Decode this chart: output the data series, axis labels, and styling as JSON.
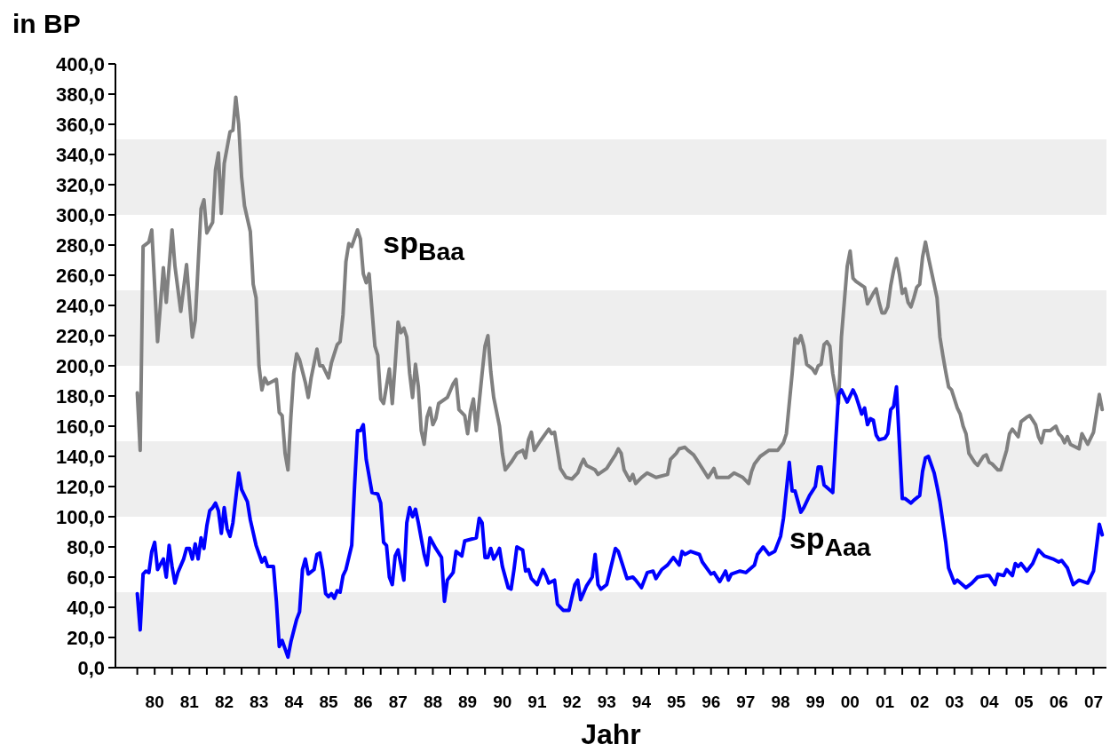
{
  "chart_data": {
    "type": "line",
    "ylabel": "in BP",
    "xlabel": "Jahr",
    "xlim": [
      "1979-05-15",
      "2007-11-15"
    ],
    "ylim": [
      0,
      400
    ],
    "xticks": [
      {
        "value": "1980-01",
        "label": null
      },
      {
        "value": "1980-07",
        "label": "80"
      },
      {
        "value": "1981-01",
        "label": null
      },
      {
        "value": "1981-07",
        "label": "81"
      },
      {
        "value": "1982-01",
        "label": null
      },
      {
        "value": "1982-07",
        "label": "82"
      },
      {
        "value": "1983-01",
        "label": null
      },
      {
        "value": "1983-07",
        "label": "83"
      },
      {
        "value": "1984-01",
        "label": null
      },
      {
        "value": "1984-07",
        "label": "84"
      },
      {
        "value": "1985-01",
        "label": null
      },
      {
        "value": "1985-07",
        "label": "85"
      },
      {
        "value": "1986-01",
        "label": null
      },
      {
        "value": "1986-07",
        "label": "86"
      },
      {
        "value": "1987-01",
        "label": null
      },
      {
        "value": "1987-07",
        "label": "87"
      },
      {
        "value": "1988-01",
        "label": null
      },
      {
        "value": "1988-07",
        "label": "88"
      },
      {
        "value": "1989-01",
        "label": null
      },
      {
        "value": "1989-07",
        "label": "89"
      },
      {
        "value": "1990-01",
        "label": null
      },
      {
        "value": "1990-07",
        "label": "90"
      },
      {
        "value": "1991-01",
        "label": null
      },
      {
        "value": "1991-07",
        "label": "91"
      },
      {
        "value": "1992-01",
        "label": null
      },
      {
        "value": "1992-07",
        "label": "92"
      },
      {
        "value": "1993-01",
        "label": null
      },
      {
        "value": "1993-07",
        "label": "93"
      },
      {
        "value": "1994-01",
        "label": null
      },
      {
        "value": "1994-07",
        "label": "94"
      },
      {
        "value": "1995-01",
        "label": null
      },
      {
        "value": "1995-07",
        "label": "95"
      },
      {
        "value": "1996-01",
        "label": null
      },
      {
        "value": "1996-07",
        "label": "96"
      },
      {
        "value": "1997-01",
        "label": null
      },
      {
        "value": "1997-07",
        "label": "97"
      },
      {
        "value": "1998-01",
        "label": null
      },
      {
        "value": "1998-07",
        "label": "98"
      },
      {
        "value": "1999-01",
        "label": null
      },
      {
        "value": "1999-07",
        "label": "99"
      },
      {
        "value": "2000-01",
        "label": null
      },
      {
        "value": "2000-07",
        "label": "00"
      },
      {
        "value": "2001-01",
        "label": null
      },
      {
        "value": "2001-07",
        "label": "01"
      },
      {
        "value": "2002-01",
        "label": null
      },
      {
        "value": "2002-07",
        "label": "02"
      },
      {
        "value": "2003-01",
        "label": null
      },
      {
        "value": "2003-07",
        "label": "03"
      },
      {
        "value": "2004-01",
        "label": null
      },
      {
        "value": "2004-07",
        "label": "04"
      },
      {
        "value": "2005-01",
        "label": null
      },
      {
        "value": "2005-07",
        "label": "05"
      },
      {
        "value": "2006-01",
        "label": null
      },
      {
        "value": "2006-07",
        "label": "06"
      },
      {
        "value": "2007-01",
        "label": null
      },
      {
        "value": "2007-07",
        "label": "07"
      }
    ],
    "yticks": [
      {
        "value": 0,
        "label": "0,0"
      },
      {
        "value": 20,
        "label": "20,0"
      },
      {
        "value": 40,
        "label": "40,0"
      },
      {
        "value": 60,
        "label": "60,0"
      },
      {
        "value": 80,
        "label": "80,0"
      },
      {
        "value": 100,
        "label": "100,0"
      },
      {
        "value": 120,
        "label": "120,0"
      },
      {
        "value": 140,
        "label": "140,0"
      },
      {
        "value": 160,
        "label": "160,0"
      },
      {
        "value": 180,
        "label": "180,0"
      },
      {
        "value": 200,
        "label": "200,0"
      },
      {
        "value": 220,
        "label": "220,0"
      },
      {
        "value": 240,
        "label": "240,0"
      },
      {
        "value": 260,
        "label": "260,0"
      },
      {
        "value": 280,
        "label": "280,0"
      },
      {
        "value": 300,
        "label": "300,0"
      },
      {
        "value": 320,
        "label": "320,0"
      },
      {
        "value": 340,
        "label": "340,0"
      },
      {
        "value": 360,
        "label": "360,0"
      },
      {
        "value": 380,
        "label": "380,0"
      },
      {
        "value": 400,
        "label": "400,0"
      }
    ],
    "grid": false,
    "legend": false,
    "marker": "none",
    "line_style": "solid",
    "bands": [
      {
        "axis": "y",
        "from": 0,
        "to": 50,
        "color": "#eeeeee"
      },
      {
        "axis": "y",
        "from": 100,
        "to": 150,
        "color": "#eeeeee"
      },
      {
        "axis": "y",
        "from": 200,
        "to": 250,
        "color": "#eeeeee"
      },
      {
        "axis": "y",
        "from": 300,
        "to": 350,
        "color": "#eeeeee"
      }
    ],
    "series": [
      {
        "name": "sp$_{Baa}$",
        "color": "#808080",
        "x": [
          "1980-01",
          "1980-02",
          "1980-03",
          "1980-05",
          "1980-06",
          "1980-08",
          "1980-10",
          "1980-11",
          "1981-01",
          "1981-02",
          "1981-04",
          "1981-06",
          "1981-08",
          "1981-09",
          "1981-11",
          "1981-12",
          "1982-01",
          "1982-03",
          "1982-04",
          "1982-05",
          "1982-06",
          "1982-07",
          "1982-09",
          "1982-10",
          "1982-11",
          "1982-12",
          "1983-01",
          "1983-02",
          "1983-04",
          "1983-05",
          "1983-06",
          "1983-07",
          "1983-08",
          "1983-09",
          "1983-10",
          "1984-01",
          "1984-02",
          "1984-03",
          "1984-04",
          "1984-05",
          "1984-06",
          "1984-07",
          "1984-08",
          "1984-09",
          "1984-11",
          "1984-12",
          "1985-01",
          "1985-03",
          "1985-04",
          "1985-05",
          "1985-07",
          "1985-08",
          "1985-10",
          "1985-11",
          "1985-12",
          "1986-01",
          "1986-02",
          "1986-03",
          "1986-05",
          "1986-06",
          "1986-07",
          "1986-08",
          "1986-09",
          "1986-11",
          "1986-12",
          "1987-01",
          "1987-02",
          "1987-04",
          "1987-05",
          "1987-06",
          "1987-07",
          "1987-08",
          "1987-09",
          "1987-10",
          "1987-11",
          "1987-12",
          "1988-01",
          "1988-02",
          "1988-03",
          "1988-04",
          "1988-05",
          "1988-06",
          "1988-07",
          "1988-08",
          "1988-09",
          "1988-12",
          "1989-02",
          "1989-03",
          "1989-04",
          "1989-06",
          "1989-07",
          "1989-08",
          "1989-09",
          "1989-10",
          "1989-12",
          "1990-01",
          "1990-02",
          "1990-03",
          "1990-04",
          "1990-06",
          "1990-07",
          "1990-08",
          "1990-10",
          "1990-12",
          "1991-02",
          "1991-03",
          "1991-04",
          "1991-05",
          "1991-06",
          "1991-08",
          "1991-11",
          "1991-12",
          "1992-01",
          "1992-02",
          "1992-03",
          "1992-05",
          "1992-07",
          "1992-09",
          "1992-10",
          "1992-11",
          "1992-12",
          "1993-02",
          "1993-03",
          "1993-04",
          "1993-07",
          "1993-09",
          "1993-10",
          "1993-11",
          "1993-12",
          "1994-01",
          "1994-03",
          "1994-04",
          "1994-05",
          "1994-07",
          "1994-09",
          "1994-12",
          "1995-04",
          "1995-05",
          "1995-07",
          "1995-08",
          "1995-10",
          "1995-11",
          "1996-01",
          "1996-02",
          "1996-03",
          "1996-06",
          "1996-08",
          "1996-09",
          "1997-01",
          "1997-03",
          "1997-06",
          "1997-08",
          "1997-09",
          "1997-10",
          "1997-12",
          "1998-03",
          "1998-06",
          "1998-08",
          "1998-09",
          "1998-10",
          "1998-11",
          "1998-12",
          "1999-01",
          "1999-02",
          "1999-03",
          "1999-04",
          "1999-06",
          "1999-07",
          "1999-08",
          "1999-09",
          "1999-10",
          "1999-11",
          "1999-12",
          "2000-01",
          "2000-02",
          "2000-03",
          "2000-04",
          "2000-06",
          "2000-07",
          "2000-08",
          "2000-09",
          "2000-12",
          "2001-01",
          "2001-03",
          "2001-04",
          "2001-05",
          "2001-06",
          "2001-07",
          "2001-08",
          "2001-09",
          "2001-10",
          "2001-11",
          "2001-12",
          "2002-01",
          "2002-02",
          "2002-03",
          "2002-04",
          "2002-05",
          "2002-06",
          "2002-07",
          "2002-08",
          "2002-09",
          "2002-10",
          "2003-01",
          "2003-02",
          "2003-03",
          "2003-04",
          "2003-05",
          "2003-06",
          "2003-08",
          "2003-09",
          "2003-10",
          "2003-11",
          "2003-12",
          "2004-02",
          "2004-03",
          "2004-05",
          "2004-06",
          "2004-07",
          "2004-08",
          "2004-10",
          "2004-11",
          "2005-01",
          "2005-02",
          "2005-03",
          "2005-05",
          "2005-06",
          "2005-08",
          "2005-09",
          "2005-10",
          "2005-11",
          "2005-12",
          "2006-01",
          "2006-02",
          "2006-04",
          "2006-06",
          "2006-07",
          "2006-08",
          "2006-09",
          "2006-10",
          "2006-11",
          "2007-02",
          "2007-03",
          "2007-05",
          "2007-07",
          "2007-09",
          "2007-10"
        ],
        "values": [
          182,
          144,
          279,
          282,
          290,
          216,
          265,
          242,
          290,
          266,
          236,
          267,
          219,
          230,
          304,
          310,
          288,
          295,
          330,
          341,
          301,
          334,
          355,
          356,
          378,
          360,
          325,
          306,
          289,
          254,
          245,
          200,
          184,
          192,
          188,
          191,
          169,
          167,
          142,
          131,
          166,
          195,
          208,
          204,
          189,
          179,
          192,
          211,
          200,
          200,
          192,
          202,
          214,
          216,
          234,
          269,
          281,
          279,
          290,
          284,
          261,
          255,
          261,
          213,
          207,
          178,
          175,
          198,
          175,
          201,
          229,
          222,
          225,
          219,
          195,
          179,
          201,
          186,
          157,
          148,
          166,
          172,
          161,
          165,
          175,
          179,
          188,
          191,
          171,
          167,
          155,
          170,
          178,
          157,
          195,
          213,
          220,
          196,
          179,
          160,
          142,
          131,
          136,
          142,
          144,
          139,
          151,
          156,
          144,
          150,
          158,
          155,
          156,
          144,
          132,
          126,
          125,
          129,
          134,
          138,
          134,
          132,
          131,
          128,
          132,
          138,
          141,
          145,
          142,
          131,
          124,
          128,
          122,
          126,
          129,
          126,
          128,
          138,
          142,
          145,
          146,
          144,
          141,
          138,
          135,
          126,
          132,
          126,
          126,
          129,
          126,
          122,
          130,
          135,
          140,
          144,
          144,
          149,
          155,
          175,
          195,
          218,
          215,
          220,
          213,
          201,
          198,
          195,
          200,
          201,
          214,
          216,
          213,
          195,
          184,
          175,
          219,
          266,
          276,
          258,
          256,
          252,
          241,
          248,
          251,
          242,
          235,
          235,
          239,
          253,
          263,
          271,
          261,
          248,
          251,
          242,
          239,
          245,
          252,
          254,
          272,
          282,
          272,
          245,
          219,
          207,
          196,
          186,
          184,
          172,
          168,
          160,
          155,
          142,
          136,
          134,
          140,
          141,
          136,
          135,
          131,
          131,
          144,
          155,
          158,
          153,
          163,
          166,
          167,
          164,
          161,
          153,
          149,
          157,
          157,
          160,
          155,
          153,
          149,
          153,
          148,
          145,
          155,
          148,
          156,
          181,
          171
        ]
      },
      {
        "name": "sp$_{Aaa}$",
        "color": "#0000ff",
        "x": [
          "1980-01",
          "1980-02",
          "1980-03",
          "1980-04",
          "1980-05",
          "1980-06",
          "1980-07",
          "1980-08",
          "1980-10",
          "1980-11",
          "1980-12",
          "1981-01",
          "1981-02",
          "1981-03",
          "1981-05",
          "1981-06",
          "1981-07",
          "1981-08",
          "1981-09",
          "1981-10",
          "1981-11",
          "1981-12",
          "1982-01",
          "1982-02",
          "1982-03",
          "1982-04",
          "1982-05",
          "1982-06",
          "1982-07",
          "1982-08",
          "1982-09",
          "1982-10",
          "1982-12",
          "1983-01",
          "1983-03",
          "1983-04",
          "1983-06",
          "1983-08",
          "1983-09",
          "1983-10",
          "1983-12",
          "1984-01",
          "1984-02",
          "1984-03",
          "1984-05",
          "1984-06",
          "1984-08",
          "1984-09",
          "1984-10",
          "1984-11",
          "1984-12",
          "1985-02",
          "1985-03",
          "1985-04",
          "1985-05",
          "1985-06",
          "1985-07",
          "1985-08",
          "1985-09",
          "1985-10",
          "1985-11",
          "1985-12",
          "1986-01",
          "1986-03",
          "1986-04",
          "1986-05",
          "1986-06",
          "1986-07",
          "1986-08",
          "1986-10",
          "1986-12",
          "1987-01",
          "1987-02",
          "1987-03",
          "1987-04",
          "1987-05",
          "1987-06",
          "1987-07",
          "1987-09",
          "1987-10",
          "1987-11",
          "1987-12",
          "1988-01",
          "1988-02",
          "1988-04",
          "1988-05",
          "1988-06",
          "1988-08",
          "1988-10",
          "1988-11",
          "1988-12",
          "1989-02",
          "1989-03",
          "1989-05",
          "1989-06",
          "1989-08",
          "1989-10",
          "1989-11",
          "1989-12",
          "1990-01",
          "1990-02",
          "1990-03",
          "1990-04",
          "1990-05",
          "1990-06",
          "1990-07",
          "1990-09",
          "1990-10",
          "1990-11",
          "1990-12",
          "1991-02",
          "1991-03",
          "1991-04",
          "1991-05",
          "1991-07",
          "1991-09",
          "1991-10",
          "1991-11",
          "1992-01",
          "1992-02",
          "1992-04",
          "1992-05",
          "1992-06",
          "1992-08",
          "1992-09",
          "1992-10",
          "1992-12",
          "1993-02",
          "1993-03",
          "1993-04",
          "1993-05",
          "1993-07",
          "1993-10",
          "1993-11",
          "1994-02",
          "1994-04",
          "1994-05",
          "1994-07",
          "1994-09",
          "1994-11",
          "1994-12",
          "1995-02",
          "1995-04",
          "1995-06",
          "1995-08",
          "1995-09",
          "1995-10",
          "1995-12",
          "1996-03",
          "1996-04",
          "1996-07",
          "1996-08",
          "1996-10",
          "1996-12",
          "1997-01",
          "1997-02",
          "1997-05",
          "1997-07",
          "1997-10",
          "1997-11",
          "1998-01",
          "1998-03",
          "1998-05",
          "1998-07",
          "1998-08",
          "1998-10",
          "1998-11",
          "1998-12",
          "1999-02",
          "1999-03",
          "1999-05",
          "1999-07",
          "1999-08",
          "1999-09",
          "1999-10",
          "2000-01",
          "2000-02",
          "2000-03",
          "2000-04",
          "2000-06",
          "2000-08",
          "2000-09",
          "2000-11",
          "2000-12",
          "2001-01",
          "2001-02",
          "2001-03",
          "2001-04",
          "2001-05",
          "2001-07",
          "2001-08",
          "2001-09",
          "2001-10",
          "2001-11",
          "2001-12",
          "2002-01",
          "2002-02",
          "2002-04",
          "2002-05",
          "2002-07",
          "2002-08",
          "2002-09",
          "2002-10",
          "2002-12",
          "2003-01",
          "2003-02",
          "2003-04",
          "2003-05",
          "2003-07",
          "2003-08",
          "2003-11",
          "2004-01",
          "2004-03",
          "2004-06",
          "2004-07",
          "2004-09",
          "2004-10",
          "2004-12",
          "2005-01",
          "2005-03",
          "2005-04",
          "2005-05",
          "2005-06",
          "2005-08",
          "2005-10",
          "2005-12",
          "2006-02",
          "2006-05",
          "2006-07",
          "2006-08",
          "2006-10",
          "2006-12",
          "2007-02",
          "2007-05",
          "2007-07",
          "2007-09",
          "2007-10"
        ],
        "values": [
          49,
          25,
          62,
          64,
          63,
          77,
          83,
          65,
          72,
          60,
          81,
          67,
          56,
          63,
          72,
          79,
          79,
          72,
          82,
          72,
          86,
          79,
          94,
          104,
          106,
          109,
          104,
          89,
          106,
          92,
          87,
          96,
          129,
          118,
          110,
          98,
          81,
          70,
          73,
          67,
          67,
          44,
          14,
          18,
          7,
          17,
          32,
          37,
          65,
          72,
          62,
          65,
          75,
          76,
          65,
          49,
          47,
          49,
          46,
          51,
          50,
          61,
          65,
          81,
          121,
          157,
          157,
          161,
          138,
          116,
          115,
          109,
          83,
          81,
          60,
          55,
          74,
          78,
          58,
          96,
          106,
          100,
          105,
          96,
          75,
          68,
          86,
          79,
          73,
          44,
          58,
          63,
          77,
          74,
          84,
          85,
          86,
          99,
          96,
          73,
          73,
          79,
          72,
          75,
          79,
          67,
          53,
          52,
          65,
          80,
          78,
          64,
          65,
          59,
          55,
          65,
          61,
          56,
          58,
          42,
          38,
          38,
          38,
          55,
          58,
          45,
          54,
          60,
          75,
          55,
          52,
          55,
          79,
          77,
          59,
          60,
          58,
          53,
          63,
          64,
          59,
          65,
          68,
          73,
          68,
          77,
          75,
          77,
          75,
          70,
          62,
          63,
          57,
          64,
          58,
          62,
          64,
          63,
          68,
          75,
          80,
          75,
          77,
          87,
          99,
          136,
          117,
          117,
          103,
          106,
          114,
          120,
          133,
          133,
          121,
          116,
          149,
          181,
          184,
          176,
          184,
          180,
          168,
          172,
          161,
          165,
          164,
          154,
          151,
          152,
          155,
          171,
          173,
          186,
          149,
          112,
          112,
          109,
          111,
          114,
          130,
          139,
          140,
          129,
          120,
          110,
          83,
          66,
          56,
          58,
          53,
          56,
          60,
          61,
          61,
          55,
          62,
          61,
          65,
          61,
          69,
          67,
          69,
          64,
          69,
          78,
          74,
          72,
          70,
          71,
          66,
          55,
          58,
          56,
          64,
          95,
          88
        ]
      }
    ]
  }
}
